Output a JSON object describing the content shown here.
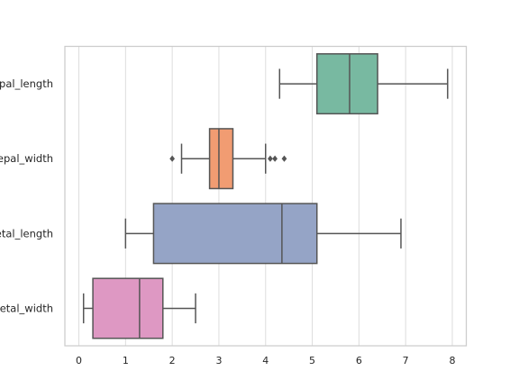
{
  "chart_data": {
    "type": "boxplot",
    "orientation": "horizontal",
    "grid": "vertical",
    "xlim": [
      -0.3,
      8.3
    ],
    "xticks": [
      0,
      1,
      2,
      3,
      4,
      5,
      6,
      7,
      8
    ],
    "categories": [
      {
        "label": "sepal_length",
        "color": "#78b9a1",
        "whisker_low": 4.3,
        "q1": 5.1,
        "median": 5.8,
        "q3": 6.4,
        "whisker_high": 7.9,
        "outliers": []
      },
      {
        "label": "sepal_width",
        "color": "#f19c72",
        "whisker_low": 2.2,
        "q1": 2.8,
        "median": 3.0,
        "q3": 3.3,
        "whisker_high": 4.0,
        "outliers": [
          2.0,
          4.1,
          4.2,
          4.4
        ]
      },
      {
        "label": "petal_length",
        "color": "#95a4c6",
        "whisker_low": 1.0,
        "q1": 1.6,
        "median": 4.35,
        "q3": 5.1,
        "whisker_high": 6.9,
        "outliers": []
      },
      {
        "label": "petal_width",
        "color": "#de98c3",
        "whisker_low": 0.1,
        "q1": 0.3,
        "median": 1.3,
        "q3": 1.8,
        "whisker_high": 2.5,
        "outliers": []
      }
    ]
  }
}
